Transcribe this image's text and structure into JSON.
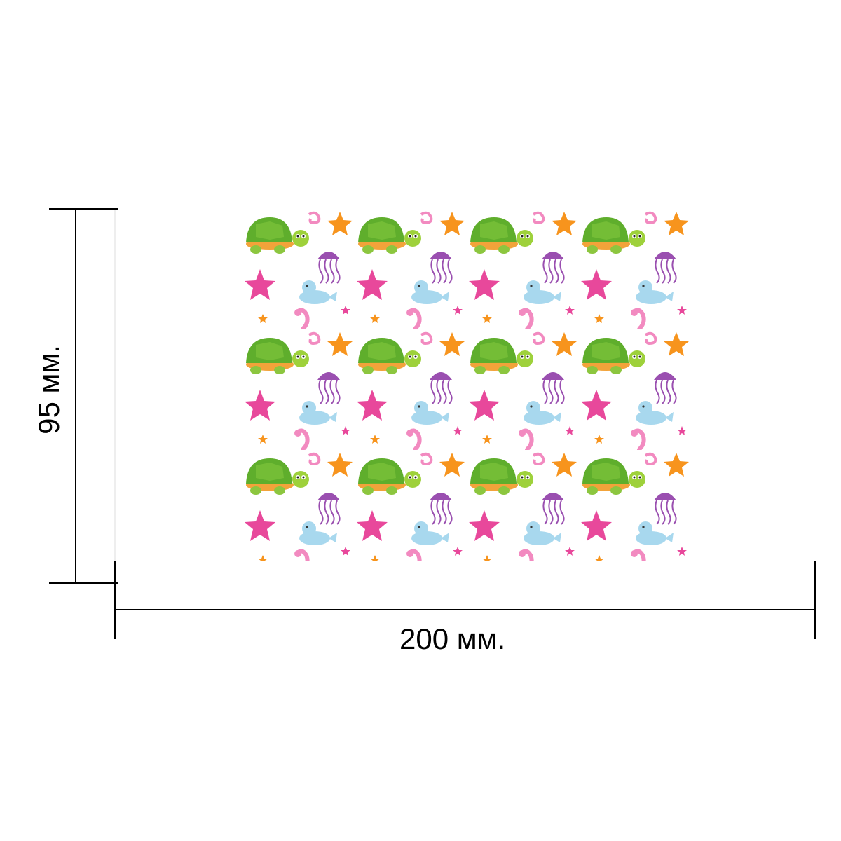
{
  "dimensions": {
    "width_label": "200 мм.",
    "height_label": "95 мм."
  },
  "pattern": {
    "motifs": [
      "turtle",
      "starfish",
      "jellyfish",
      "seal",
      "seahorse",
      "small-star"
    ],
    "colors": {
      "turtle_shell": "#6fbf2a",
      "turtle_body": "#9ed13b",
      "starfish_orange": "#f7941d",
      "starfish_pink": "#e8489b",
      "jellyfish": "#9a4fb0",
      "seal": "#a8d8ee",
      "seahorse": "#f28ac0"
    }
  },
  "colors": {
    "line": "#000000",
    "background": "#ffffff"
  }
}
